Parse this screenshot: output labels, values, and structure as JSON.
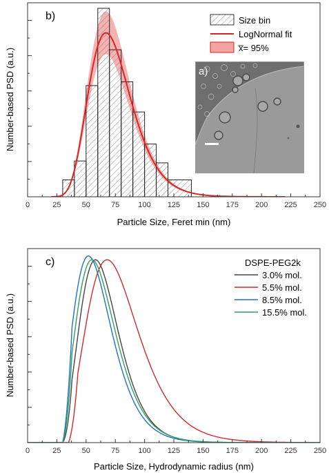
{
  "chart_data": [
    {
      "panel_label": "b)",
      "type": "bar",
      "xlabel": "Particle Size, Feret min (nm)",
      "ylabel": "Number-based PSD (a.u.)",
      "xlim": [
        0,
        250
      ],
      "xticks": [
        0,
        25,
        50,
        75,
        100,
        125,
        150,
        175,
        200,
        225,
        250
      ],
      "ylim": [
        0,
        1
      ],
      "ytick_labels": "none",
      "legend_position": "top-right",
      "legend": [
        "Size bin",
        "LogNormal fit",
        "x̅= 95%"
      ],
      "bins": [
        {
          "x0": 30,
          "x1": 40,
          "value": 0.09
        },
        {
          "x0": 40,
          "x1": 50,
          "value": 0.19
        },
        {
          "x0": 50,
          "x1": 60,
          "value": 0.59
        },
        {
          "x0": 60,
          "x1": 70,
          "value": 1.0
        },
        {
          "x0": 70,
          "x1": 80,
          "value": 0.78
        },
        {
          "x0": 80,
          "x1": 90,
          "value": 0.61
        },
        {
          "x0": 90,
          "x1": 100,
          "value": 0.45
        },
        {
          "x0": 100,
          "x1": 110,
          "value": 0.28
        },
        {
          "x0": 110,
          "x1": 120,
          "value": 0.18
        },
        {
          "x0": 120,
          "x1": 140,
          "value": 0.09
        }
      ],
      "fit_peak": 67,
      "fit_peak_value": 0.87,
      "fit_sigma": 0.27,
      "band_fraction": 0.13,
      "inset": {
        "label": "a)",
        "content": "TEM micrograph with scale bar"
      },
      "colors": {
        "fit": "#d62728",
        "band": "#f4a3a3",
        "bins": "#555555"
      }
    },
    {
      "panel_label": "c)",
      "type": "line",
      "xlabel": "Particle Size, Hydrodynamic radius (nm)",
      "ylabel": "Number-based PSD (a.u.)",
      "xlim": [
        0,
        250
      ],
      "xticks": [
        0,
        25,
        50,
        75,
        100,
        125,
        150,
        175,
        200,
        225,
        250
      ],
      "ylim": [
        0,
        1
      ],
      "ytick_labels": "none",
      "legend_title": "DSPE-PEG2k",
      "legend_position": "top-right",
      "series": [
        {
          "name": "3.0% mol.",
          "color": "#444444",
          "peak": 58,
          "sigma": 0.29,
          "onset": 30,
          "max": 0.97
        },
        {
          "name": "5.5% mol.",
          "color": "#d62728",
          "peak": 68,
          "sigma": 0.33,
          "onset": 35,
          "max": 0.97
        },
        {
          "name": "8.5% mol.",
          "color": "#1f6fd1",
          "peak": 52,
          "sigma": 0.32,
          "onset": 30,
          "max": 0.99
        },
        {
          "name": "15.5% mol.",
          "color": "#2ca05a",
          "peak": 55,
          "sigma": 0.31,
          "onset": 30,
          "max": 0.97
        }
      ]
    }
  ]
}
